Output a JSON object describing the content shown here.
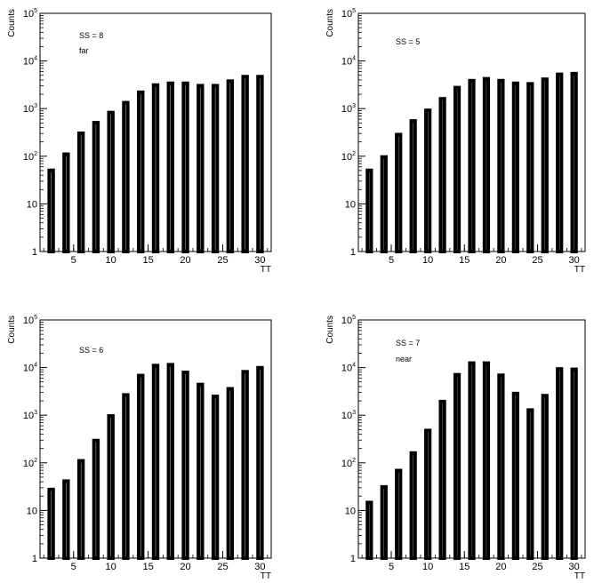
{
  "chart_data": [
    {
      "type": "bar",
      "title": "",
      "annotations": [
        "SS = 8",
        "far"
      ],
      "xlabel": "TT",
      "ylabel": "Counts",
      "log_y": true,
      "xlim": [
        0.5,
        31.5
      ],
      "ylim": [
        1,
        100000
      ],
      "x_ticks": [
        5,
        10,
        15,
        20,
        25,
        30
      ],
      "y_ticks": [
        {
          "base": "1",
          "exp": ""
        },
        {
          "base": "10",
          "exp": ""
        },
        {
          "base": "10",
          "exp": "2"
        },
        {
          "base": "10",
          "exp": "3"
        },
        {
          "base": "10",
          "exp": "4"
        },
        {
          "base": "10",
          "exp": "5"
        }
      ],
      "x": [
        2,
        4,
        6,
        8,
        10,
        12,
        14,
        16,
        18,
        20,
        22,
        24,
        26,
        28,
        30
      ],
      "values": [
        55,
        120,
        330,
        550,
        900,
        1450,
        2400,
        3400,
        3700,
        3700,
        3300,
        3300,
        4100,
        5100,
        5100
      ]
    },
    {
      "type": "bar",
      "title": "",
      "annotations": [
        "SS = 5"
      ],
      "xlabel": "TT",
      "ylabel": "Counts",
      "log_y": true,
      "xlim": [
        0.5,
        31.5
      ],
      "ylim": [
        1,
        100000
      ],
      "x_ticks": [
        5,
        10,
        15,
        20,
        25,
        30
      ],
      "y_ticks": [
        {
          "base": "1",
          "exp": ""
        },
        {
          "base": "10",
          "exp": ""
        },
        {
          "base": "10",
          "exp": "2"
        },
        {
          "base": "10",
          "exp": "3"
        },
        {
          "base": "10",
          "exp": "4"
        },
        {
          "base": "10",
          "exp": "5"
        }
      ],
      "x": [
        2,
        4,
        6,
        8,
        10,
        12,
        14,
        16,
        18,
        20,
        22,
        24,
        26,
        28,
        30
      ],
      "values": [
        55,
        105,
        310,
        600,
        1000,
        1750,
        3000,
        4200,
        4600,
        4200,
        3700,
        3600,
        4500,
        5700,
        5900
      ]
    },
    {
      "type": "bar",
      "title": "",
      "annotations": [
        "SS = 6"
      ],
      "xlabel": "TT",
      "ylabel": "Counts",
      "log_y": true,
      "xlim": [
        0.5,
        31.5
      ],
      "ylim": [
        1,
        100000
      ],
      "x_ticks": [
        5,
        10,
        15,
        20,
        25,
        30
      ],
      "y_ticks": [
        {
          "base": "1",
          "exp": ""
        },
        {
          "base": "10",
          "exp": ""
        },
        {
          "base": "10",
          "exp": "2"
        },
        {
          "base": "10",
          "exp": "3"
        },
        {
          "base": "10",
          "exp": "4"
        },
        {
          "base": "10",
          "exp": "5"
        }
      ],
      "x": [
        2,
        4,
        6,
        8,
        10,
        12,
        14,
        16,
        18,
        20,
        22,
        24,
        26,
        28,
        30
      ],
      "values": [
        30,
        45,
        120,
        320,
        1050,
        2900,
        7400,
        12000,
        12500,
        8600,
        4800,
        2700,
        3900,
        8900,
        10800
      ]
    },
    {
      "type": "bar",
      "title": "",
      "annotations": [
        "SS = 7",
        "near"
      ],
      "xlabel": "TT",
      "ylabel": "Counts",
      "log_y": true,
      "xlim": [
        0.5,
        31.5
      ],
      "ylim": [
        1,
        100000
      ],
      "x_ticks": [
        5,
        10,
        15,
        20,
        25,
        30
      ],
      "y_ticks": [
        {
          "base": "1",
          "exp": ""
        },
        {
          "base": "10",
          "exp": ""
        },
        {
          "base": "10",
          "exp": "2"
        },
        {
          "base": "10",
          "exp": "3"
        },
        {
          "base": "10",
          "exp": "4"
        },
        {
          "base": "10",
          "exp": "5"
        }
      ],
      "x": [
        2,
        4,
        6,
        8,
        10,
        12,
        14,
        16,
        18,
        20,
        22,
        24,
        26,
        28,
        30
      ],
      "values": [
        16,
        34,
        75,
        175,
        520,
        2100,
        7700,
        13500,
        13500,
        7500,
        3100,
        1400,
        2800,
        10200,
        10000
      ]
    }
  ]
}
